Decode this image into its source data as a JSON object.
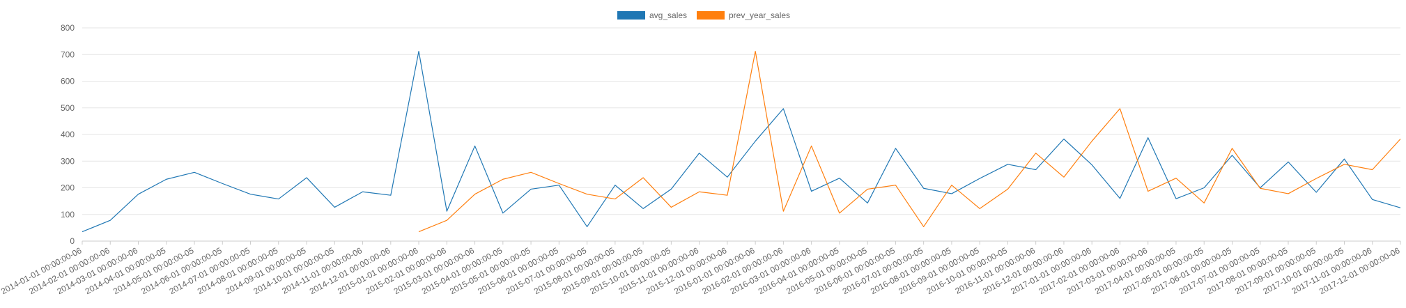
{
  "chart_data": {
    "type": "line",
    "categories": [
      "2014-01-01 00:00:00-06",
      "2014-02-01 00:00:00-06",
      "2014-03-01 00:00:00-06",
      "2014-04-01 00:00:00-05",
      "2014-05-01 00:00:00-05",
      "2014-06-01 00:00:00-05",
      "2014-07-01 00:00:00-05",
      "2014-08-01 00:00:00-05",
      "2014-09-01 00:00:00-05",
      "2014-10-01 00:00:00-05",
      "2014-11-01 00:00:00-06",
      "2014-12-01 00:00:00-06",
      "2015-01-01 00:00:00-06",
      "2015-02-01 00:00:00-06",
      "2015-03-01 00:00:00-06",
      "2015-04-01 00:00:00-05",
      "2015-05-01 00:00:00-05",
      "2015-06-01 00:00:00-05",
      "2015-07-01 00:00:00-05",
      "2015-08-01 00:00:00-05",
      "2015-09-01 00:00:00-05",
      "2015-10-01 00:00:00-05",
      "2015-11-01 00:00:00-06",
      "2015-12-01 00:00:00-06",
      "2016-01-01 00:00:00-06",
      "2016-02-01 00:00:00-06",
      "2016-03-01 00:00:00-06",
      "2016-04-01 00:00:00-05",
      "2016-05-01 00:00:00-05",
      "2016-06-01 00:00:00-05",
      "2016-07-01 00:00:00-05",
      "2016-08-01 00:00:00-05",
      "2016-09-01 00:00:00-05",
      "2016-10-01 00:00:00-05",
      "2016-11-01 00:00:00-06",
      "2016-12-01 00:00:00-06",
      "2017-01-01 00:00:00-06",
      "2017-02-01 00:00:00-06",
      "2017-03-01 00:00:00-06",
      "2017-04-01 00:00:00-05",
      "2017-05-01 00:00:00-05",
      "2017-06-01 00:00:00-05",
      "2017-07-01 00:00:00-05",
      "2017-08-01 00:00:00-05",
      "2017-09-01 00:00:00-05",
      "2017-10-01 00:00:00-05",
      "2017-11-01 00:00:00-06",
      "2017-12-01 00:00:00-06"
    ],
    "series": [
      {
        "name": "avg_sales",
        "color": "#1f77b4",
        "values": [
          35,
          78,
          176,
          232,
          258,
          216,
          176,
          158,
          238,
          127,
          185,
          172,
          712,
          112,
          357,
          105,
          195,
          210,
          54,
          210,
          122,
          195,
          330,
          240,
          375,
          497,
          187,
          236,
          143,
          348,
          198,
          178,
          235,
          288,
          268,
          383,
          286,
          160,
          388,
          159,
          200,
          322,
          200,
          297,
          183,
          308,
          156,
          125
        ]
      },
      {
        "name": "prev_year_sales",
        "color": "#ff7f0e",
        "values": [
          null,
          null,
          null,
          null,
          null,
          null,
          null,
          null,
          null,
          null,
          null,
          null,
          35,
          78,
          176,
          232,
          258,
          216,
          176,
          158,
          238,
          127,
          185,
          172,
          712,
          112,
          357,
          105,
          195,
          210,
          54,
          210,
          122,
          195,
          330,
          240,
          375,
          497,
          187,
          236,
          143,
          348,
          198,
          178,
          235,
          288,
          268,
          383
        ]
      }
    ],
    "ylim": [
      0,
      800
    ],
    "yticks": [
      "0",
      "100",
      "200",
      "300",
      "400",
      "500",
      "600",
      "700",
      "800"
    ],
    "grid": true,
    "legend_position": "top-center",
    "title": "",
    "xlabel": "",
    "ylabel": ""
  }
}
